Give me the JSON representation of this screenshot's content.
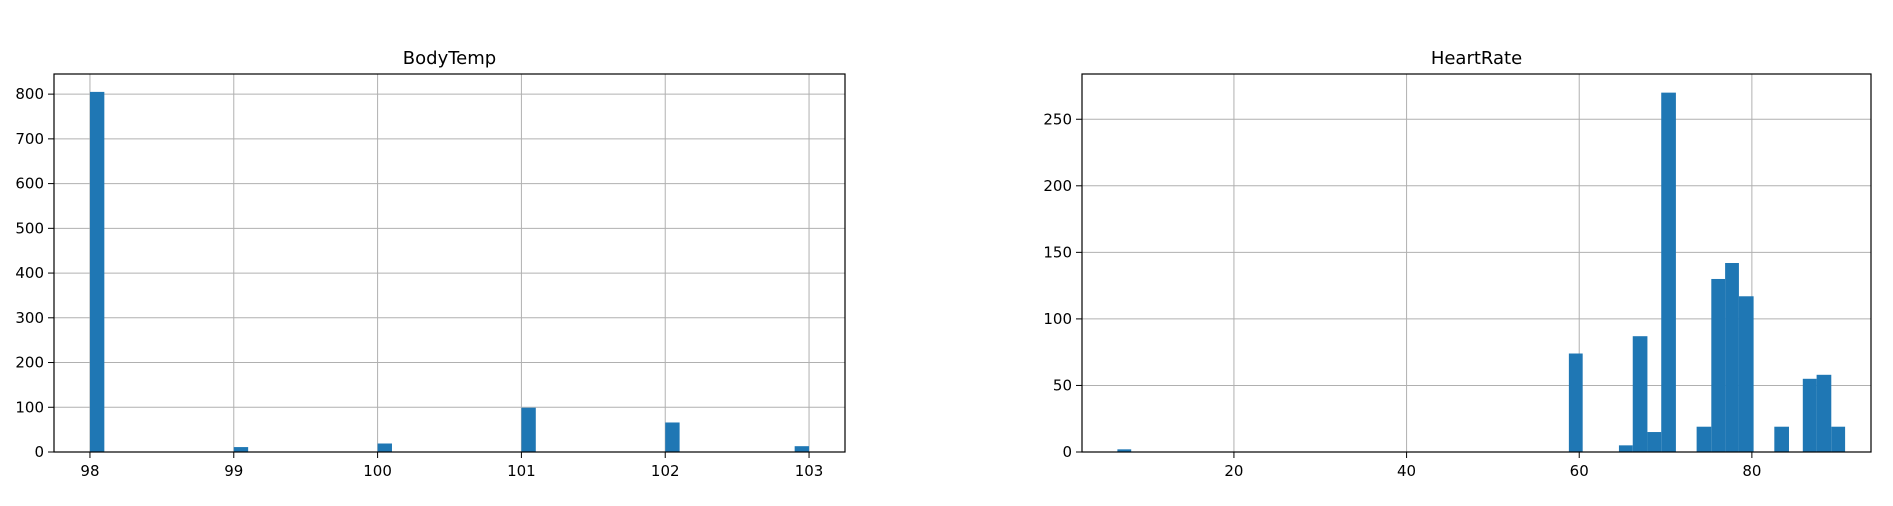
{
  "chart_data": [
    {
      "type": "bar",
      "title": "BodyTemp",
      "xlabel": "",
      "ylabel": "",
      "xlim": [
        97.75,
        103.25
      ],
      "ylim": [
        0,
        845
      ],
      "xticks": [
        98,
        99,
        100,
        101,
        102,
        103
      ],
      "yticks": [
        0,
        100,
        200,
        300,
        400,
        500,
        600,
        700,
        800
      ],
      "grid": true,
      "bar_color": "#1f77b4",
      "bins": [
        {
          "x0": 98.0,
          "x1": 98.1,
          "count": 805
        },
        {
          "x0": 99.0,
          "x1": 99.1,
          "count": 11
        },
        {
          "x0": 100.0,
          "x1": 100.1,
          "count": 19
        },
        {
          "x0": 101.0,
          "x1": 101.1,
          "count": 99
        },
        {
          "x0": 102.0,
          "x1": 102.1,
          "count": 66
        },
        {
          "x0": 102.9,
          "x1": 103.0,
          "count": 13
        }
      ]
    },
    {
      "type": "bar",
      "title": "HeartRate",
      "xlabel": "",
      "ylabel": "",
      "xlim": [
        2.4,
        93.8
      ],
      "ylim": [
        0,
        284
      ],
      "xticks": [
        20,
        40,
        60,
        80
      ],
      "yticks": [
        0,
        50,
        100,
        150,
        200,
        250
      ],
      "grid": true,
      "bar_color": "#1f77b4",
      "bins": [
        {
          "x0": 6.5,
          "x1": 8.1,
          "count": 2
        },
        {
          "x0": 58.8,
          "x1": 60.4,
          "count": 74
        },
        {
          "x0": 64.6,
          "x1": 66.2,
          "count": 5
        },
        {
          "x0": 66.2,
          "x1": 67.9,
          "count": 87
        },
        {
          "x0": 67.9,
          "x1": 69.5,
          "count": 15
        },
        {
          "x0": 69.5,
          "x1": 71.2,
          "count": 270
        },
        {
          "x0": 73.6,
          "x1": 75.3,
          "count": 19
        },
        {
          "x0": 75.3,
          "x1": 76.9,
          "count": 130
        },
        {
          "x0": 76.9,
          "x1": 78.5,
          "count": 142
        },
        {
          "x0": 78.5,
          "x1": 80.2,
          "count": 117
        },
        {
          "x0": 82.6,
          "x1": 84.3,
          "count": 19
        },
        {
          "x0": 85.9,
          "x1": 87.5,
          "count": 55
        },
        {
          "x0": 87.5,
          "x1": 89.2,
          "count": 58
        },
        {
          "x0": 89.2,
          "x1": 90.8,
          "count": 19
        }
      ]
    }
  ]
}
